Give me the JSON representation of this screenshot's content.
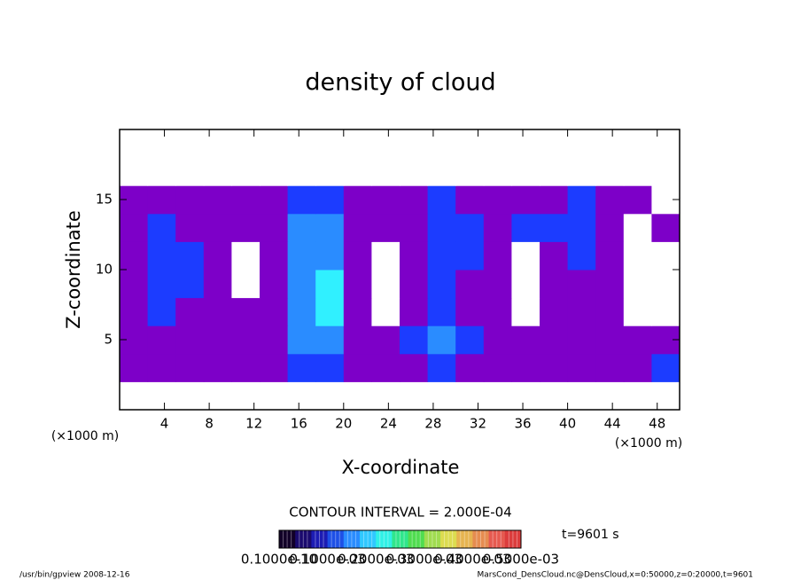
{
  "chart_data": {
    "type": "contour",
    "title": "density of cloud",
    "x_label": "X-coordinate",
    "y_label": "Z-coordinate",
    "x_unit": "(×1000 m)",
    "y_unit": "(×1000 m)",
    "xlim": [
      0,
      50
    ],
    "ylim": [
      0,
      20
    ],
    "xticks": [
      4,
      8,
      12,
      16,
      20,
      24,
      28,
      32,
      36,
      40,
      44,
      48
    ],
    "yticks": [
      5,
      10,
      15
    ],
    "xbins": [
      0,
      2.5,
      5,
      7.5,
      10,
      12.5,
      15,
      17.5,
      20,
      22.5,
      25,
      27.5,
      30,
      32.5,
      35,
      37.5,
      40,
      42.5,
      45,
      47.5,
      50
    ],
    "zbins": [
      0,
      2,
      4,
      6,
      8,
      10,
      12,
      14,
      16,
      18,
      20
    ],
    "z": [
      [
        0,
        0,
        0,
        0,
        0,
        0,
        0,
        0,
        0,
        0,
        0,
        0,
        0,
        0,
        0,
        0,
        0,
        0,
        0,
        0
      ],
      [
        5e-05,
        5e-05,
        5e-05,
        5e-05,
        5e-05,
        5e-05,
        0.0001,
        0.0001,
        5e-05,
        5e-05,
        5e-05,
        0.0001,
        5e-05,
        5e-05,
        5e-05,
        5e-05,
        5e-05,
        5e-05,
        5e-05,
        0.0001
      ],
      [
        5e-05,
        5e-05,
        5e-05,
        5e-05,
        5e-05,
        5e-05,
        0.0002,
        0.0002,
        5e-05,
        5e-05,
        0.0001,
        0.0002,
        0.0001,
        5e-05,
        5e-05,
        5e-05,
        5e-05,
        5e-05,
        5e-05,
        5e-05
      ],
      [
        5e-05,
        0.0001,
        5e-05,
        5e-05,
        5e-05,
        5e-05,
        0.0002,
        0.0003,
        5e-05,
        0,
        5e-05,
        0.0001,
        5e-05,
        5e-05,
        0,
        5e-05,
        5e-05,
        5e-05,
        0,
        0
      ],
      [
        5e-05,
        0.0001,
        0.0001,
        5e-05,
        0,
        5e-05,
        0.0002,
        0.0003,
        5e-05,
        0,
        5e-05,
        0.0001,
        5e-05,
        5e-05,
        0,
        5e-05,
        5e-05,
        5e-05,
        0,
        0
      ],
      [
        5e-05,
        0.0001,
        0.0001,
        5e-05,
        0,
        5e-05,
        0.0002,
        0.0002,
        5e-05,
        0,
        5e-05,
        0.0001,
        0.0001,
        5e-05,
        0,
        5e-05,
        0.0001,
        5e-05,
        0,
        0
      ],
      [
        5e-05,
        0.0001,
        5e-05,
        5e-05,
        5e-05,
        5e-05,
        0.0002,
        0.0002,
        5e-05,
        5e-05,
        5e-05,
        0.0001,
        0.0001,
        5e-05,
        0.0001,
        0.0001,
        0.0001,
        5e-05,
        0,
        5e-05
      ],
      [
        5e-05,
        5e-05,
        5e-05,
        5e-05,
        5e-05,
        5e-05,
        0.0001,
        0.0001,
        5e-05,
        5e-05,
        5e-05,
        0.0001,
        5e-05,
        5e-05,
        5e-05,
        5e-05,
        0.0001,
        5e-05,
        5e-05,
        0
      ],
      [
        0,
        0,
        0,
        0,
        0,
        0,
        0,
        0,
        0,
        0,
        0,
        0,
        0,
        0,
        0,
        0,
        0,
        0,
        0,
        0
      ],
      [
        0,
        0,
        0,
        0,
        0,
        0,
        0,
        0,
        0,
        0,
        0,
        0,
        0,
        0,
        0,
        0,
        0,
        0,
        0,
        0
      ]
    ],
    "contour_levels": [
      5e-05,
      0.0001,
      0.0002,
      0.0003
    ],
    "level_colors": [
      "#ffffff",
      "#7d00c8",
      "#1c3cff",
      "#2a8cff",
      "#30f0ff"
    ],
    "contour_interval": "CONTOUR INTERVAL = 2.000E-04",
    "time_label": "t=9601 s",
    "colorbar": {
      "colors": [
        "#120028",
        "#1a0a6e",
        "#1c1cb4",
        "#1e50e6",
        "#2a8cff",
        "#30c8ff",
        "#30f0e6",
        "#30e68c",
        "#50dc50",
        "#a0dc50",
        "#dcdc50",
        "#e6b450",
        "#e68c50",
        "#e65a50",
        "#dc3c3c"
      ],
      "labels": [
        {
          "value": 1e-11,
          "label": "0.1000e-10"
        },
        {
          "value": 0.0001,
          "label": "0.1000e-03"
        },
        {
          "value": 0.0002,
          "label": "0.2000e-03"
        },
        {
          "value": 0.0003,
          "label": "0.3000e-03"
        },
        {
          "value": 0.0004,
          "label": "0.4000e-03"
        },
        {
          "value": 0.0005,
          "label": "0.5000e-03"
        }
      ]
    },
    "footer_left": "/usr/bin/gpview  2008-12-16",
    "footer_right": "MarsCond_DensCloud.nc@DensCloud,x=0:50000,z=0:20000,t=9601"
  }
}
